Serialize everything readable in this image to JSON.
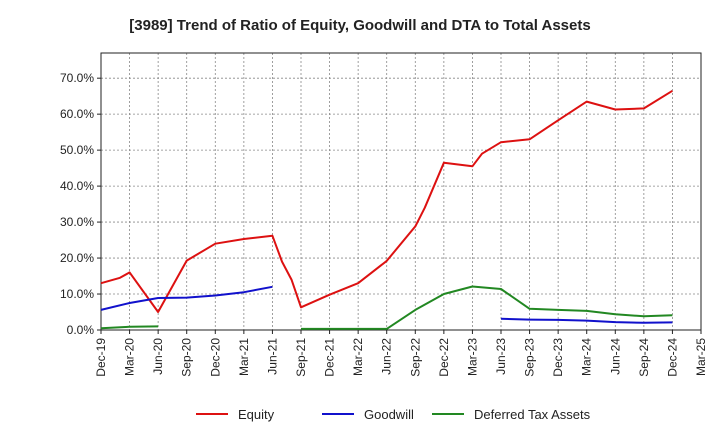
{
  "chart_data": {
    "type": "line",
    "title": "[3989]  Trend of Ratio of Equity, Goodwill and DTA to Total Assets",
    "xlabel": "",
    "ylabel": "",
    "ylim": [
      0,
      77
    ],
    "y_ticks": [
      0,
      10,
      20,
      30,
      40,
      50,
      60,
      70
    ],
    "y_tick_labels": [
      "0.0%",
      "10.0%",
      "20.0%",
      "30.0%",
      "40.0%",
      "50.0%",
      "60.0%",
      "70.0%"
    ],
    "x_tick_labels": [
      "Dec-19",
      "Mar-20",
      "Jun-20",
      "Sep-20",
      "Dec-20",
      "Mar-21",
      "Jun-21",
      "Sep-21",
      "Dec-21",
      "Mar-22",
      "Jun-22",
      "Sep-22",
      "Dec-22",
      "Mar-23",
      "Jun-23",
      "Sep-23",
      "Dec-23",
      "Mar-24",
      "Jun-24",
      "Sep-24",
      "Dec-24",
      "Mar-25"
    ],
    "grid": true,
    "legend_position": "bottom",
    "series": [
      {
        "name": "Equity",
        "color": "#dd1111",
        "points": [
          [
            "Dec-19",
            13.0
          ],
          [
            "Feb-20",
            14.5
          ],
          [
            "Mar-20",
            16.0
          ],
          [
            "Jun-20",
            5.0
          ],
          [
            "Sep-20",
            19.3
          ],
          [
            "Dec-20",
            24.0
          ],
          [
            "Mar-21",
            25.3
          ],
          [
            "Jun-21",
            26.2
          ],
          [
            "Jul-21",
            19.0
          ],
          [
            "Aug-21",
            14.0
          ],
          [
            "Sep-21",
            6.3
          ],
          [
            "Dec-21",
            9.8
          ],
          [
            "Mar-22",
            13.0
          ],
          [
            "Jun-22",
            19.2
          ],
          [
            "Sep-22",
            28.8
          ],
          [
            "Oct-22",
            34.0
          ],
          [
            "Dec-22",
            46.5
          ],
          [
            "Mar-23",
            45.5
          ],
          [
            "Apr-23",
            49.0
          ],
          [
            "Jun-23",
            52.2
          ],
          [
            "Sep-23",
            53.0
          ],
          [
            "Dec-23",
            58.3
          ],
          [
            "Mar-24",
            63.5
          ],
          [
            "Jun-24",
            61.3
          ],
          [
            "Sep-24",
            61.6
          ],
          [
            "Dec-24",
            66.5
          ]
        ]
      },
      {
        "name": "Goodwill",
        "color": "#1111cc",
        "points": [
          [
            "Dec-19",
            5.6
          ],
          [
            "Mar-20",
            7.5
          ],
          [
            "Jun-20",
            8.9
          ],
          [
            "Sep-20",
            9.0
          ],
          [
            "Dec-20",
            9.6
          ],
          [
            "Mar-21",
            10.5
          ],
          [
            "Jun-21",
            12.0
          ],
          [
            "Jun-23",
            3.1
          ],
          [
            "Sep-23",
            2.9
          ],
          [
            "Dec-23",
            2.8
          ],
          [
            "Mar-24",
            2.6
          ],
          [
            "Jun-24",
            2.2
          ],
          [
            "Sep-24",
            2.0
          ],
          [
            "Dec-24",
            2.1
          ]
        ],
        "breaks_after": [
          "Jun-21"
        ]
      },
      {
        "name": "Deferred Tax Assets",
        "color": "#228822",
        "points": [
          [
            "Dec-19",
            0.5
          ],
          [
            "Mar-20",
            0.9
          ],
          [
            "Jun-20",
            1.0
          ],
          [
            "Sep-21",
            0.3
          ],
          [
            "Dec-21",
            0.3
          ],
          [
            "Mar-22",
            0.3
          ],
          [
            "Jun-22",
            0.3
          ],
          [
            "Sep-22",
            5.6
          ],
          [
            "Dec-22",
            10.0
          ],
          [
            "Mar-23",
            12.1
          ],
          [
            "Jun-23",
            11.4
          ],
          [
            "Sep-23",
            5.9
          ],
          [
            "Dec-23",
            5.6
          ],
          [
            "Mar-24",
            5.3
          ],
          [
            "Jun-24",
            4.4
          ],
          [
            "Sep-24",
            3.8
          ],
          [
            "Dec-24",
            4.1
          ]
        ],
        "breaks_after": [
          "Jun-20"
        ]
      }
    ]
  }
}
